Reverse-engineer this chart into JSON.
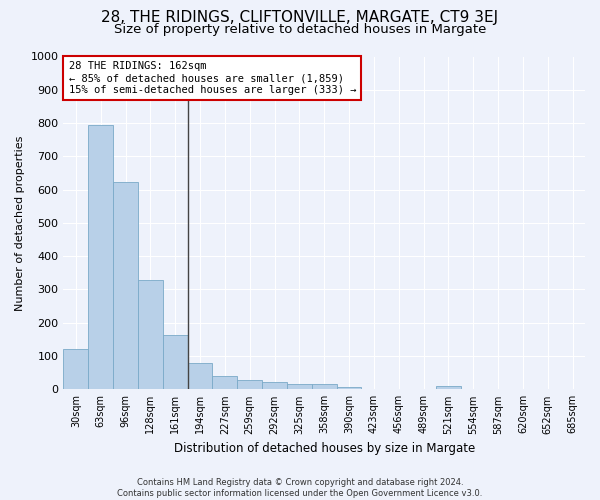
{
  "title": "28, THE RIDINGS, CLIFTONVILLE, MARGATE, CT9 3EJ",
  "subtitle": "Size of property relative to detached houses in Margate",
  "xlabel": "Distribution of detached houses by size in Margate",
  "ylabel": "Number of detached properties",
  "categories": [
    "30sqm",
    "63sqm",
    "96sqm",
    "128sqm",
    "161sqm",
    "194sqm",
    "227sqm",
    "259sqm",
    "292sqm",
    "325sqm",
    "358sqm",
    "390sqm",
    "423sqm",
    "456sqm",
    "489sqm",
    "521sqm",
    "554sqm",
    "587sqm",
    "620sqm",
    "652sqm",
    "685sqm"
  ],
  "values": [
    122,
    795,
    623,
    327,
    162,
    78,
    40,
    28,
    22,
    15,
    15,
    8,
    0,
    0,
    0,
    10,
    0,
    0,
    0,
    0,
    0
  ],
  "bar_color": "#b8d0e8",
  "bar_edge_color": "#7aaac8",
  "vline_color": "#444444",
  "annotation_line1": "28 THE RIDINGS: 162sqm",
  "annotation_line2": "← 85% of detached houses are smaller (1,859)",
  "annotation_line3": "15% of semi-detached houses are larger (333) →",
  "annotation_box_facecolor": "#ffffff",
  "annotation_box_edgecolor": "#cc0000",
  "background_color": "#eef2fb",
  "grid_color": "#ffffff",
  "footnote": "Contains HM Land Registry data © Crown copyright and database right 2024.\nContains public sector information licensed under the Open Government Licence v3.0.",
  "ylim": [
    0,
    1000
  ],
  "yticks": [
    0,
    100,
    200,
    300,
    400,
    500,
    600,
    700,
    800,
    900,
    1000
  ],
  "title_fontsize": 11,
  "subtitle_fontsize": 9.5,
  "vline_bin_index": 4
}
